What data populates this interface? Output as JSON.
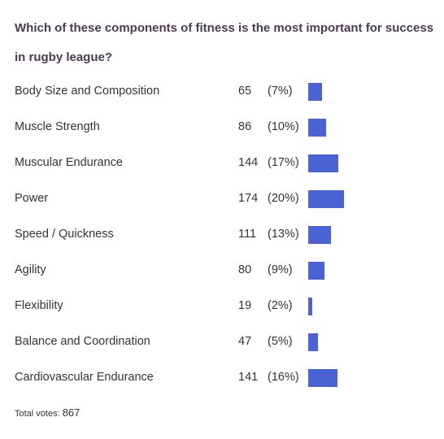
{
  "poll": {
    "question": "Which of these components of fitness is the most important for success in rugby league?",
    "bar_color": "#4a62d3",
    "options": [
      {
        "label": "Body Size and Composition",
        "votes": "65",
        "percent_text": "(7%)",
        "share": 0.075
      },
      {
        "label": "Muscle Strength",
        "votes": "86",
        "percent_text": "(10%)",
        "share": 0.099
      },
      {
        "label": "Muscular Endurance",
        "votes": "144",
        "percent_text": "(17%)",
        "share": 0.166
      },
      {
        "label": "Power",
        "votes": "174",
        "percent_text": "(20%)",
        "share": 0.201
      },
      {
        "label": "Speed / Quickness",
        "votes": "111",
        "percent_text": "(13%)",
        "share": 0.128
      },
      {
        "label": "Agility",
        "votes": "80",
        "percent_text": "(9%)",
        "share": 0.092
      },
      {
        "label": "Flexibility",
        "votes": "19",
        "percent_text": "(2%)",
        "share": 0.022
      },
      {
        "label": "Balance and Coordination",
        "votes": "47",
        "percent_text": "(5%)",
        "share": 0.054
      },
      {
        "label": "Cardiovascular Endurance",
        "votes": "141",
        "percent_text": "(16%)",
        "share": 0.163
      }
    ],
    "total_label": "Total votes:",
    "total_votes": "867"
  }
}
